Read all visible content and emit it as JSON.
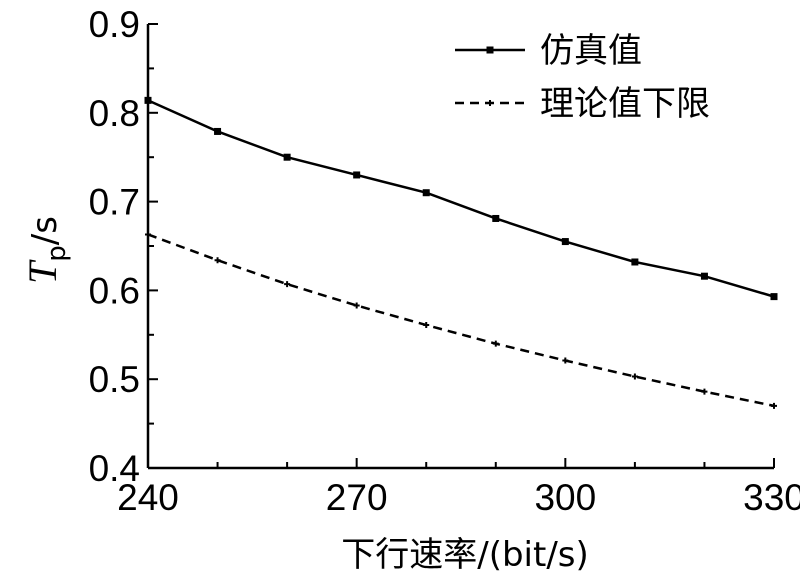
{
  "chart_data": {
    "type": "line",
    "xlabel": "下行速率/(bit/s)",
    "ylabel": {
      "symbol": "T",
      "subscript": "p",
      "unit": "/s"
    },
    "xlim": [
      240,
      330
    ],
    "ylim": [
      0.4,
      0.9
    ],
    "x_ticks": [
      240,
      270,
      300,
      330
    ],
    "y_ticks": [
      0.4,
      0.5,
      0.6,
      0.7,
      0.8,
      0.9
    ],
    "x_tick_labels": [
      "240",
      "270",
      "300",
      "330"
    ],
    "y_tick_labels": [
      "0.4",
      "0.5",
      "0.6",
      "0.7",
      "0.8",
      "0.9"
    ],
    "grid": false,
    "legend_position": "top-right",
    "x": [
      240,
      250,
      260,
      270,
      280,
      290,
      300,
      310,
      320,
      330
    ],
    "series": [
      {
        "name": "仿真值",
        "style": "solid",
        "marker": "square",
        "color": "#000000",
        "values": [
          0.814,
          0.779,
          0.75,
          0.73,
          0.71,
          0.681,
          0.655,
          0.632,
          0.616,
          0.593
        ]
      },
      {
        "name": "理论值下限",
        "style": "dashed",
        "marker": "plus",
        "color": "#000000",
        "values": [
          0.663,
          0.634,
          0.607,
          0.583,
          0.561,
          0.54,
          0.521,
          0.503,
          0.486,
          0.47
        ]
      }
    ]
  }
}
